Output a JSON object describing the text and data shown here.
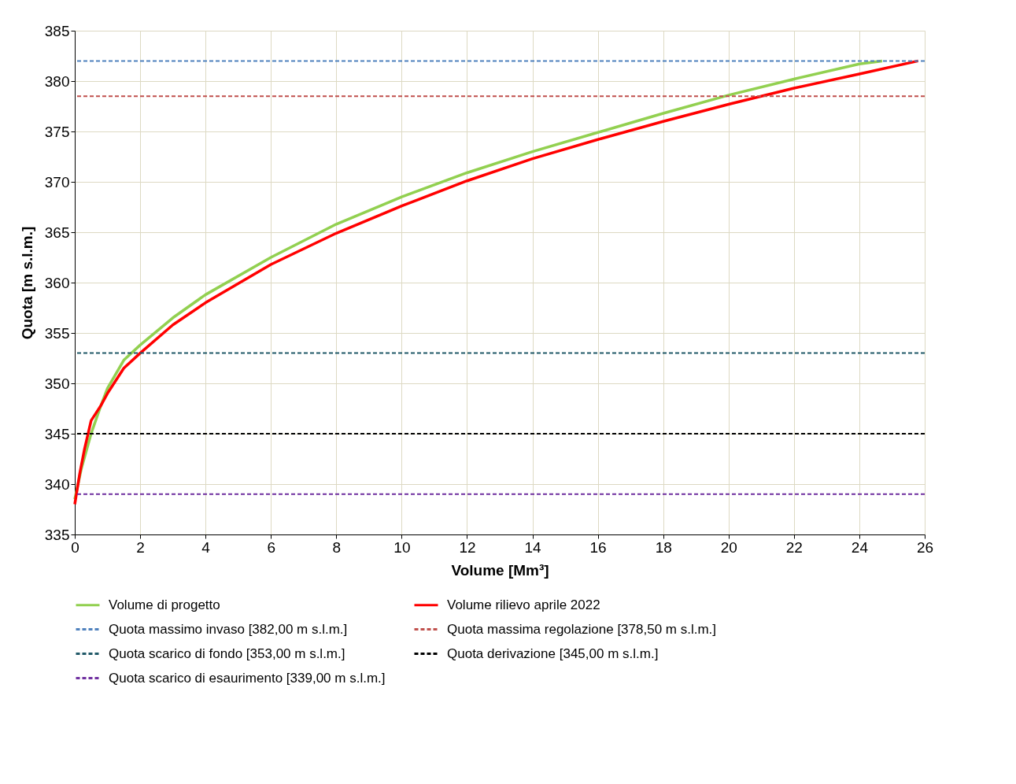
{
  "chart_data": {
    "type": "line",
    "xlabel": "Volume [Mm³]",
    "ylabel": "Quota [m s.l.m.]",
    "xlim": [
      0,
      26
    ],
    "xticks": [
      0,
      2,
      4,
      6,
      8,
      10,
      12,
      14,
      16,
      18,
      20,
      22,
      24,
      26
    ],
    "ylim": [
      335,
      385
    ],
    "yticks": [
      335,
      340,
      345,
      350,
      355,
      360,
      365,
      370,
      375,
      380,
      385
    ],
    "grid": true,
    "legend": "bottom",
    "line_style": "solid",
    "marker": "none",
    "series": [
      {
        "name": "Volume di progetto",
        "color": "#92d050",
        "x": [
          0,
          0.2,
          0.5,
          0.8,
          1,
          1.5,
          2,
          3,
          4,
          6,
          8,
          10,
          12,
          14,
          16,
          18,
          20,
          22,
          24,
          24.7
        ],
        "values": [
          338.5,
          341.5,
          345,
          347.8,
          349.5,
          352.3,
          353.8,
          356.5,
          358.8,
          362.5,
          365.8,
          368.5,
          370.9,
          373,
          374.9,
          376.8,
          378.6,
          380.2,
          381.7,
          382
        ]
      },
      {
        "name": "Volume rilievo aprile 2022",
        "color": "#ff0000",
        "x": [
          0,
          0.15,
          0.3,
          0.5,
          0.8,
          1,
          1.5,
          2,
          3,
          4,
          6,
          8,
          10,
          12,
          14,
          16,
          18,
          20,
          22,
          24,
          25.8
        ],
        "values": [
          338,
          341,
          343.5,
          346.3,
          347.8,
          349,
          351.5,
          353,
          355.8,
          358,
          361.8,
          364.9,
          367.6,
          370.1,
          372.3,
          374.2,
          376,
          377.7,
          379.3,
          380.7,
          382
        ]
      }
    ],
    "ref_lines": [
      {
        "axis": "y",
        "value": 382,
        "label": "Quota massimo invaso [382,00 m s.l.m.]",
        "color": "#4f81bd",
        "line_style": "dashed"
      },
      {
        "axis": "y",
        "value": 378.5,
        "label": "Quota massima regolazione [378,50 m s.l.m.]",
        "color": "#c0504d",
        "line_style": "dashed"
      },
      {
        "axis": "y",
        "value": 353,
        "label": "Quota scarico di fondo [353,00 m s.l.m.]",
        "color": "#215968",
        "line_style": "dashed"
      },
      {
        "axis": "y",
        "value": 345,
        "label": "Quota derivazione [345,00 m s.l.m.]",
        "color": "#000000",
        "line_style": "dashed"
      },
      {
        "axis": "y",
        "value": 339,
        "label": "Quota scarico di esaurimento [339,00 m s.l.m.]",
        "color": "#7030a0",
        "line_style": "dashed"
      }
    ]
  }
}
